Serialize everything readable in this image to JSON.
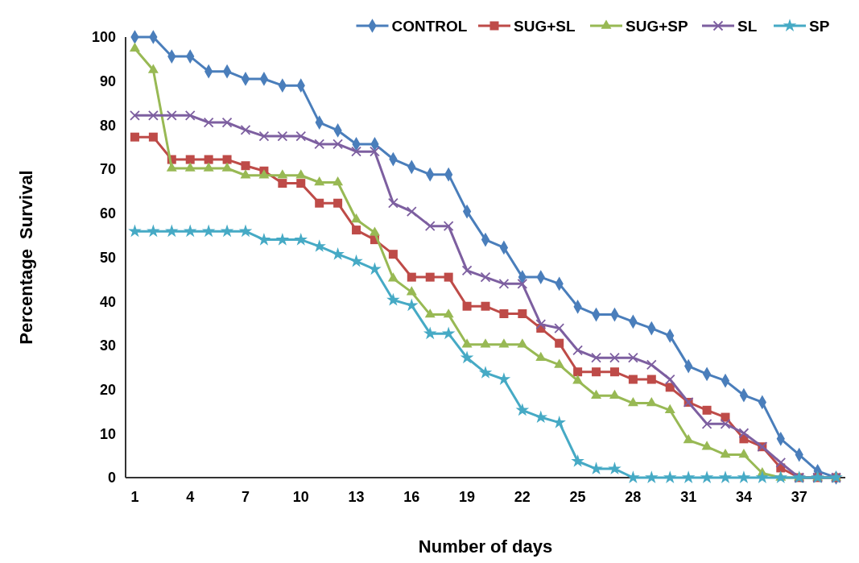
{
  "chart_data": {
    "type": "line",
    "xlabel": "Number of days",
    "ylabel": "Percentage  Survival",
    "categories": [
      "1",
      null,
      null,
      "4",
      null,
      null,
      "7",
      null,
      null,
      "10",
      null,
      null,
      "13",
      null,
      null,
      "16",
      null,
      null,
      "19",
      null,
      null,
      "22",
      null,
      null,
      "25",
      null,
      null,
      "28",
      null,
      null,
      "31",
      null,
      null,
      "34",
      null,
      null,
      "37",
      null,
      null
    ],
    "ylim": [
      0,
      100
    ],
    "yticks": [
      0,
      10,
      20,
      30,
      40,
      50,
      60,
      70,
      80,
      90,
      100
    ],
    "grid": false,
    "legend": "top right",
    "series": [
      {
        "name": "CONTROL",
        "color": "#4a7ebb",
        "marker": "diamond",
        "values": [
          100,
          100,
          95.6,
          95.6,
          92.2,
          92.2,
          90.5,
          90.5,
          89,
          89,
          80.6,
          78.8,
          75.7,
          75.7,
          72.3,
          70.5,
          68.8,
          68.8,
          60.4,
          54,
          52.2,
          45.5,
          45.5,
          44,
          38.8,
          37,
          37,
          35.4,
          33.9,
          32.2,
          25.3,
          23.5,
          22,
          18.7,
          17.1,
          8.8,
          5.2,
          1.5,
          0
        ]
      },
      {
        "name": "SUG+SL",
        "color": "#be4b48",
        "marker": "square",
        "values": [
          77.3,
          77.3,
          72.2,
          72.2,
          72.2,
          72.2,
          70.8,
          69.6,
          66.8,
          66.8,
          62.3,
          62.3,
          56.2,
          54,
          50.7,
          45.5,
          45.5,
          45.5,
          38.9,
          38.9,
          37.2,
          37.2,
          33.9,
          30.5,
          24,
          24,
          24,
          22.3,
          22.3,
          20.5,
          17.1,
          15.3,
          13.7,
          8.8,
          7,
          2.2,
          0,
          0,
          0
        ]
      },
      {
        "name": "SUG+SP",
        "color": "#98b954",
        "marker": "triangle",
        "values": [
          97.4,
          92.5,
          70.2,
          70.2,
          70.2,
          70.2,
          68.6,
          68.6,
          68.6,
          68.6,
          67,
          67,
          58.6,
          55.6,
          45.2,
          42.1,
          37,
          37,
          30.2,
          30.2,
          30.2,
          30.2,
          27.2,
          25.6,
          22,
          18.6,
          18.6,
          16.9,
          16.9,
          15.3,
          8.5,
          7,
          5.2,
          5.2,
          1,
          0,
          0,
          0,
          0
        ]
      },
      {
        "name": "SL",
        "color": "#7d5fa0",
        "marker": "cross",
        "values": [
          82.2,
          82.2,
          82.2,
          82.2,
          80.6,
          80.6,
          78.9,
          77.5,
          77.5,
          77.5,
          75.7,
          75.7,
          74,
          74,
          62.3,
          60.4,
          57.1,
          57.1,
          47,
          45.5,
          44,
          44,
          34.8,
          33.9,
          28.9,
          27.2,
          27.2,
          27.2,
          25.6,
          22.3,
          17.1,
          12.2,
          12.2,
          10.1,
          7,
          3.4,
          0,
          0,
          0
        ]
      },
      {
        "name": "SP",
        "color": "#46aac5",
        "marker": "star",
        "values": [
          55.9,
          55.9,
          55.9,
          55.9,
          55.9,
          55.9,
          55.9,
          54,
          54,
          54,
          52.5,
          50.7,
          49.1,
          47.3,
          40.3,
          39.1,
          32.7,
          32.7,
          27.2,
          23.8,
          22.3,
          15.3,
          13.7,
          12.5,
          3.7,
          2,
          2,
          0,
          0,
          0,
          0,
          0,
          0,
          0,
          0,
          0,
          0,
          0,
          0
        ]
      }
    ]
  }
}
